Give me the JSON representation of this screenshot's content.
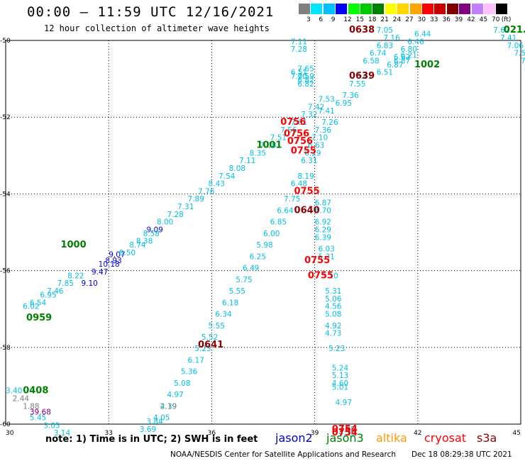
{
  "header": {
    "title": "00:00 – 11:59 UTC 12/16/2021",
    "subtitle": "12 hour collection of altimeter wave heights"
  },
  "color_scale": {
    "unit": "(ft)",
    "swatches": [
      {
        "color": "#808080",
        "label": "3"
      },
      {
        "color": "#00e5ff",
        "label": "6"
      },
      {
        "color": "#00c0ff",
        "label": "9"
      },
      {
        "color": "#0000ff",
        "label": "12"
      },
      {
        "color": "#00ff00",
        "label": "15"
      },
      {
        "color": "#00c800",
        "label": "18"
      },
      {
        "color": "#008000",
        "label": "21"
      },
      {
        "color": "#ffff00",
        "label": "24"
      },
      {
        "color": "#ffd700",
        "label": "27"
      },
      {
        "color": "#ffa500",
        "label": "30"
      },
      {
        "color": "#ff0000",
        "label": "33"
      },
      {
        "color": "#c80000",
        "label": "36"
      },
      {
        "color": "#800000",
        "label": "39"
      },
      {
        "color": "#800080",
        "label": "42"
      },
      {
        "color": "#c080ff",
        "label": "45"
      },
      {
        "color": "#ffc0ff",
        "label": "70"
      },
      {
        "color": "#000000",
        "label": ""
      }
    ]
  },
  "axes": {
    "x_ticks": [
      "30",
      "33",
      "36",
      "39",
      "42",
      "45"
    ],
    "y_ticks": [
      "-50",
      "-52",
      "-54",
      "-56",
      "-58",
      "-60"
    ]
  },
  "chart_data": {
    "type": "scatter",
    "xlim": [
      30,
      45
    ],
    "ylim": [
      -60,
      -50
    ],
    "grid": true,
    "colors": {
      "c": "#00bfe6",
      "b": "#0000ee",
      "g": "#008000",
      "r": "#ff0000",
      "d": "#8b0000",
      "gr": "#808080",
      "p": "#800080"
    },
    "points": [
      {
        "x": 32.7,
        "y": -55.9,
        "t": "10.18",
        "c": "b"
      },
      {
        "x": 32.5,
        "y": -56.1,
        "t": "9.47",
        "c": "b"
      },
      {
        "x": 32.2,
        "y": -56.4,
        "t": "9.10",
        "c": "b"
      },
      {
        "x": 34.1,
        "y": -55.0,
        "t": "9.09",
        "c": "b"
      },
      {
        "x": 33.0,
        "y": -55.65,
        "t": "9.07",
        "c": "b"
      },
      {
        "x": 32.9,
        "y": -55.8,
        "t": "8.93",
        "c": "b"
      },
      {
        "x": 30.5,
        "y": -57.0,
        "t": "6.02",
        "c": "c"
      },
      {
        "x": 30.7,
        "y": -56.9,
        "t": "6.54",
        "c": "c"
      },
      {
        "x": 31.0,
        "y": -56.7,
        "t": "6.95",
        "c": "c"
      },
      {
        "x": 31.2,
        "y": -56.6,
        "t": "7.46",
        "c": "c"
      },
      {
        "x": 31.5,
        "y": -56.4,
        "t": "7.85",
        "c": "c"
      },
      {
        "x": 31.8,
        "y": -56.2,
        "t": "8.22",
        "c": "c"
      },
      {
        "x": 33.3,
        "y": -55.6,
        "t": "8.50",
        "c": "c"
      },
      {
        "x": 33.6,
        "y": -55.4,
        "t": "8.74",
        "c": "c"
      },
      {
        "x": 34.0,
        "y": -55.1,
        "t": "8.58",
        "c": "c"
      },
      {
        "x": 33.8,
        "y": -55.3,
        "t": "8.38",
        "c": "c"
      },
      {
        "x": 34.4,
        "y": -54.8,
        "t": "8.00",
        "c": "c"
      },
      {
        "x": 34.7,
        "y": -54.6,
        "t": "7.28",
        "c": "c"
      },
      {
        "x": 35.0,
        "y": -54.4,
        "t": "7.31",
        "c": "c"
      },
      {
        "x": 35.3,
        "y": -54.2,
        "t": "7.89",
        "c": "c"
      },
      {
        "x": 35.6,
        "y": -54.0,
        "t": "7.76",
        "c": "c"
      },
      {
        "x": 35.9,
        "y": -53.8,
        "t": "8.43",
        "c": "c"
      },
      {
        "x": 36.2,
        "y": -53.6,
        "t": "7.54",
        "c": "c"
      },
      {
        "x": 36.5,
        "y": -53.4,
        "t": "8.08",
        "c": "c"
      },
      {
        "x": 36.8,
        "y": -53.2,
        "t": "7.11",
        "c": "c"
      },
      {
        "x": 37.1,
        "y": -53.0,
        "t": "8.35",
        "c": "c"
      },
      {
        "x": 37.4,
        "y": -52.8,
        "t": "7.08",
        "c": "c"
      },
      {
        "x": 37.7,
        "y": -52.6,
        "t": "7.51",
        "c": "c"
      },
      {
        "x": 38.0,
        "y": -52.4,
        "t": "7.56",
        "c": "c"
      },
      {
        "x": 38.3,
        "y": -52.2,
        "t": "7.61",
        "c": "c"
      },
      {
        "x": 38.6,
        "y": -52.0,
        "t": "7.32",
        "c": "c"
      },
      {
        "x": 38.8,
        "y": -51.8,
        "t": "7.42",
        "c": "c"
      },
      {
        "x": 39.1,
        "y": -51.6,
        "t": "7.53",
        "c": "c"
      },
      {
        "x": 39.1,
        "y": -51.9,
        "t": "7.41",
        "c": "c"
      },
      {
        "x": 38.5,
        "y": -51.2,
        "t": "6.82",
        "c": "c"
      },
      {
        "x": 38.5,
        "y": -50.8,
        "t": "7.65",
        "c": "c"
      },
      {
        "x": 38.5,
        "y": -51.0,
        "t": "7.59",
        "c": "c"
      },
      {
        "x": 38.5,
        "y": -51.1,
        "t": "6.82",
        "c": "c"
      },
      {
        "x": 38.3,
        "y": -50.1,
        "t": "7.11",
        "c": "c"
      },
      {
        "x": 38.3,
        "y": -50.3,
        "t": "7.28",
        "c": "c"
      },
      {
        "x": 38.3,
        "y": -50.9,
        "t": "6.51",
        "c": "c"
      },
      {
        "x": 38.3,
        "y": -51.0,
        "t": "7.00",
        "c": "c"
      },
      {
        "x": 39.6,
        "y": -51.7,
        "t": "6.95",
        "c": "c"
      },
      {
        "x": 39.8,
        "y": -51.5,
        "t": "7.36",
        "c": "c"
      },
      {
        "x": 40.0,
        "y": -51.2,
        "t": "7.55",
        "c": "c"
      },
      {
        "x": 40.2,
        "y": -51.0,
        "t": "6.41",
        "c": "c"
      },
      {
        "x": 40.4,
        "y": -50.6,
        "t": "6.58",
        "c": "c"
      },
      {
        "x": 40.6,
        "y": -50.4,
        "t": "6.74",
        "c": "c"
      },
      {
        "x": 40.8,
        "y": -50.2,
        "t": "6.83",
        "c": "c"
      },
      {
        "x": 41.0,
        "y": -50.0,
        "t": "7.16",
        "c": "c"
      },
      {
        "x": 40.8,
        "y": -49.8,
        "t": "7.05",
        "c": "c"
      },
      {
        "x": 41.3,
        "y": -50.5,
        "t": "6.62",
        "c": "c"
      },
      {
        "x": 41.5,
        "y": -50.3,
        "t": "6.80",
        "c": "c"
      },
      {
        "x": 41.7,
        "y": -50.1,
        "t": "6.46",
        "c": "c"
      },
      {
        "x": 41.9,
        "y": -49.9,
        "t": "6.44",
        "c": "c"
      },
      {
        "x": 41.3,
        "y": -50.6,
        "t": "6.87",
        "c": "c"
      },
      {
        "x": 41.1,
        "y": -50.7,
        "t": "6.87",
        "c": "c"
      },
      {
        "x": 40.8,
        "y": -50.9,
        "t": "6.51",
        "c": "c"
      },
      {
        "x": 41.5,
        "y": -50.45,
        "t": "6.21",
        "c": "c"
      },
      {
        "x": 39.2,
        "y": -52.2,
        "t": "7.26",
        "c": "c"
      },
      {
        "x": 39.0,
        "y": -52.4,
        "t": "7.36",
        "c": "c"
      },
      {
        "x": 38.9,
        "y": -52.6,
        "t": "7.10",
        "c": "c"
      },
      {
        "x": 38.8,
        "y": -52.8,
        "t": "6.63",
        "c": "c"
      },
      {
        "x": 38.7,
        "y": -53.0,
        "t": "6.29",
        "c": "c"
      },
      {
        "x": 38.6,
        "y": -53.2,
        "t": "6.31",
        "c": "c"
      },
      {
        "x": 38.5,
        "y": -53.6,
        "t": "8.19",
        "c": "c"
      },
      {
        "x": 38.3,
        "y": -53.8,
        "t": "6.48",
        "c": "c"
      },
      {
        "x": 38.1,
        "y": -54.2,
        "t": "7.75",
        "c": "c"
      },
      {
        "x": 37.9,
        "y": -54.5,
        "t": "6.64",
        "c": "c"
      },
      {
        "x": 37.7,
        "y": -54.8,
        "t": "6.85",
        "c": "c"
      },
      {
        "x": 37.5,
        "y": -55.1,
        "t": "6.00",
        "c": "c"
      },
      {
        "x": 37.3,
        "y": -55.4,
        "t": "5.98",
        "c": "c"
      },
      {
        "x": 37.1,
        "y": -55.7,
        "t": "6.25",
        "c": "c"
      },
      {
        "x": 36.9,
        "y": -56.0,
        "t": "6.49",
        "c": "c"
      },
      {
        "x": 36.7,
        "y": -56.3,
        "t": "5.75",
        "c": "c"
      },
      {
        "x": 36.5,
        "y": -56.6,
        "t": "5.55",
        "c": "c"
      },
      {
        "x": 36.3,
        "y": -56.9,
        "t": "6.18",
        "c": "c"
      },
      {
        "x": 36.1,
        "y": -57.2,
        "t": "6.34",
        "c": "c"
      },
      {
        "x": 35.9,
        "y": -57.5,
        "t": "5.55",
        "c": "c"
      },
      {
        "x": 35.7,
        "y": -57.8,
        "t": "5.52",
        "c": "c"
      },
      {
        "x": 35.5,
        "y": -58.1,
        "t": "5.23",
        "c": "c"
      },
      {
        "x": 35.3,
        "y": -58.4,
        "t": "6.17",
        "c": "c"
      },
      {
        "x": 35.1,
        "y": -58.7,
        "t": "5.36",
        "c": "c"
      },
      {
        "x": 34.9,
        "y": -59.0,
        "t": "5.08",
        "c": "c"
      },
      {
        "x": 34.7,
        "y": -59.3,
        "t": "4.97",
        "c": "c"
      },
      {
        "x": 34.5,
        "y": -59.6,
        "t": "4.39",
        "c": "c"
      },
      {
        "x": 34.3,
        "y": -59.9,
        "t": "4.05",
        "c": "c"
      },
      {
        "x": 34.1,
        "y": -60.0,
        "t": "3.84",
        "c": "c"
      },
      {
        "x": 33.9,
        "y": -60.2,
        "t": "3.69",
        "c": "c"
      },
      {
        "x": 39.0,
        "y": -54.3,
        "t": "6.87",
        "c": "c"
      },
      {
        "x": 39.0,
        "y": -54.5,
        "t": "6.70",
        "c": "c"
      },
      {
        "x": 39.0,
        "y": -54.8,
        "t": "6.92",
        "c": "c"
      },
      {
        "x": 39.0,
        "y": -55.0,
        "t": "6.29",
        "c": "c"
      },
      {
        "x": 39.0,
        "y": -55.2,
        "t": "6.39",
        "c": "c"
      },
      {
        "x": 39.1,
        "y": -55.5,
        "t": "6.03",
        "c": "c"
      },
      {
        "x": 39.1,
        "y": -55.7,
        "t": "5.31",
        "c": "c"
      },
      {
        "x": 39.2,
        "y": -56.2,
        "t": "5.10",
        "c": "c"
      },
      {
        "x": 39.3,
        "y": -56.6,
        "t": "5.31",
        "c": "c"
      },
      {
        "x": 39.3,
        "y": -56.8,
        "t": "5.06",
        "c": "c"
      },
      {
        "x": 39.3,
        "y": -57.0,
        "t": "4.56",
        "c": "c"
      },
      {
        "x": 39.3,
        "y": -57.2,
        "t": "5.08",
        "c": "c"
      },
      {
        "x": 39.3,
        "y": -57.5,
        "t": "4.92",
        "c": "c"
      },
      {
        "x": 39.3,
        "y": -57.7,
        "t": "4.73",
        "c": "c"
      },
      {
        "x": 39.4,
        "y": -58.1,
        "t": "5.23",
        "c": "c"
      },
      {
        "x": 39.5,
        "y": -58.6,
        "t": "5.24",
        "c": "c"
      },
      {
        "x": 39.5,
        "y": -58.8,
        "t": "5.13",
        "c": "c"
      },
      {
        "x": 39.5,
        "y": -59.0,
        "t": "4.60",
        "c": "c"
      },
      {
        "x": 39.5,
        "y": -59.1,
        "t": "5.01",
        "c": "c"
      },
      {
        "x": 39.6,
        "y": -59.5,
        "t": "4.97",
        "c": "c"
      },
      {
        "x": 39.7,
        "y": -60.2,
        "t": "4.25",
        "c": "c"
      },
      {
        "x": 39.7,
        "y": -60.3,
        "t": "4.19",
        "c": "c"
      },
      {
        "x": 44.2,
        "y": -49.8,
        "t": "7.62",
        "c": "c"
      },
      {
        "x": 44.4,
        "y": -50.0,
        "t": "7.41",
        "c": "c"
      },
      {
        "x": 44.6,
        "y": -50.2,
        "t": "7.06",
        "c": "c"
      },
      {
        "x": 44.8,
        "y": -50.4,
        "t": "7.53",
        "c": "c"
      },
      {
        "x": 45.0,
        "y": -50.6,
        "t": "7.51",
        "c": "c"
      },
      {
        "x": 45.1,
        "y": -50.8,
        "t": "8.1",
        "c": "c"
      },
      {
        "x": 45.3,
        "y": -51.0,
        "t": "7.",
        "c": "c"
      },
      {
        "x": 30.0,
        "y": -59.2,
        "t": "3.40",
        "c": "c"
      },
      {
        "x": 30.7,
        "y": -59.9,
        "t": "5.45",
        "c": "c"
      },
      {
        "x": 31.1,
        "y": -60.1,
        "t": "3.05",
        "c": "c"
      },
      {
        "x": 31.4,
        "y": -60.3,
        "t": "3.14",
        "c": "c"
      },
      {
        "x": 30.2,
        "y": -59.4,
        "t": "2.44",
        "c": "gr"
      },
      {
        "x": 30.5,
        "y": -59.6,
        "t": "1.88",
        "c": "gr"
      },
      {
        "x": 34.5,
        "y": -59.6,
        "t": "2.19",
        "c": "gr"
      },
      {
        "x": 30.7,
        "y": -59.75,
        "t": "39.68",
        "c": "p"
      }
    ],
    "time_labels": [
      {
        "x": 30.6,
        "y": -57.3,
        "t": "0959",
        "c": "g"
      },
      {
        "x": 31.6,
        "y": -55.4,
        "t": "1000",
        "c": "g"
      },
      {
        "x": 37.3,
        "y": -52.8,
        "t": "1001",
        "c": "g"
      },
      {
        "x": 41.9,
        "y": -50.7,
        "t": "1002",
        "c": "g"
      },
      {
        "x": 44.5,
        "y": -49.8,
        "t": "021.1",
        "c": "g"
      },
      {
        "x": 45.2,
        "y": -50.2,
        "t": "02",
        "c": "g"
      },
      {
        "x": 30.5,
        "y": -59.2,
        "t": "0408",
        "c": "g"
      },
      {
        "x": 38.0,
        "y": -52.2,
        "t": "0756",
        "c": "r"
      },
      {
        "x": 38.1,
        "y": -52.5,
        "t": "0756",
        "c": "r"
      },
      {
        "x": 38.2,
        "y": -52.7,
        "t": "0756",
        "c": "r"
      },
      {
        "x": 38.3,
        "y": -52.95,
        "t": "0755",
        "c": "r"
      },
      {
        "x": 38.4,
        "y": -54.0,
        "t": "0755",
        "c": "r"
      },
      {
        "x": 38.7,
        "y": -55.8,
        "t": "0755",
        "c": "r"
      },
      {
        "x": 38.8,
        "y": -56.2,
        "t": "0755",
        "c": "r"
      },
      {
        "x": 39.5,
        "y": -60.2,
        "t": "0754",
        "c": "r"
      },
      {
        "x": 39.5,
        "y": -60.3,
        "t": "0754",
        "c": "r"
      },
      {
        "x": 40.0,
        "y": -49.8,
        "t": "0638",
        "c": "d"
      },
      {
        "x": 40.0,
        "y": -51.0,
        "t": "0639",
        "c": "d"
      },
      {
        "x": 38.4,
        "y": -54.5,
        "t": "0640",
        "c": "d"
      },
      {
        "x": 35.6,
        "y": -58.0,
        "t": "0641",
        "c": "d"
      }
    ]
  },
  "footer": {
    "note": "note: 1) Time is in UTC; 2) SWH is in feet",
    "legend": [
      {
        "label": "jason2",
        "color": "#0000dd"
      },
      {
        "label": "jason3",
        "color": "#008000"
      },
      {
        "label": "altika",
        "color": "#ff9900"
      },
      {
        "label": "cryosat",
        "color": "#ff0000"
      },
      {
        "label": "s3a",
        "color": "#8b0000"
      }
    ],
    "credit": "NOAA/NESDIS Center for Satellite Applications and Research",
    "timestamp": "Dec 18 08:29:38 UTC 2021"
  }
}
